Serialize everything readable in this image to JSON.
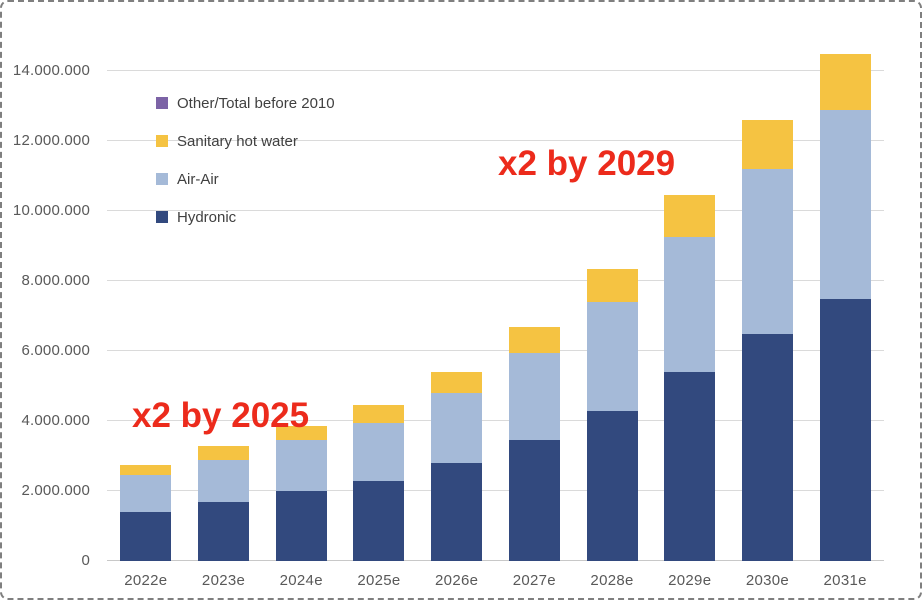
{
  "canvas": {
    "background": "#ffffff",
    "border_color": "#7f7f7f"
  },
  "annotations": [
    {
      "text": "x2 by 2025",
      "color": "#EC2B1C"
    },
    {
      "text": "x2 by 2029",
      "color": "#EC2B1C"
    }
  ],
  "legend": {
    "items": [
      {
        "label": "Other/Total before 2010",
        "color": "#7C63A6"
      },
      {
        "label": "Sanitary hot water",
        "color": "#F5C342"
      },
      {
        "label": "Air-Air",
        "color": "#A5BAD8"
      },
      {
        "label": "Hydronic",
        "color": "#32497E"
      }
    ]
  },
  "chart_data": {
    "type": "bar",
    "stacked": true,
    "title": "",
    "xlabel": "",
    "ylabel": "",
    "categories": [
      "2022e",
      "2023e",
      "2024e",
      "2025e",
      "2026e",
      "2027e",
      "2028e",
      "2029e",
      "2030e",
      "2031e"
    ],
    "series": [
      {
        "name": "Hydronic",
        "color": "#32497E",
        "values": [
          1400000,
          1700000,
          2000000,
          2300000,
          2800000,
          3450000,
          4300000,
          5400000,
          6500000,
          7500000
        ]
      },
      {
        "name": "Air-Air",
        "color": "#A5BAD8",
        "values": [
          1050000,
          1200000,
          1450000,
          1650000,
          2000000,
          2500000,
          3100000,
          3850000,
          4700000,
          5400000
        ]
      },
      {
        "name": "Sanitary hot water",
        "color": "#F5C342",
        "values": [
          300000,
          400000,
          400000,
          500000,
          600000,
          750000,
          950000,
          1200000,
          1400000,
          1600000
        ]
      },
      {
        "name": "Other/Total before 2010",
        "color": "#7C63A6",
        "values": [
          0,
          0,
          0,
          0,
          0,
          0,
          0,
          0,
          0,
          0
        ]
      }
    ],
    "totals": [
      2750000,
      3300000,
      3850000,
      4450000,
      5400000,
      6700000,
      8350000,
      10450000,
      12600000,
      14500000
    ],
    "ylim": [
      0,
      14000000
    ],
    "y_ticks": [
      0,
      2000000,
      4000000,
      6000000,
      8000000,
      10000000,
      12000000,
      14000000
    ],
    "y_tick_labels": [
      "0",
      "2.000.000",
      "4.000.000",
      "6.000.000",
      "8.000.000",
      "10.000.000",
      "12.000.000",
      "14.000.000"
    ],
    "grid": true,
    "legend_position": "upper-left-inside",
    "gridline_color": "#DADADA",
    "axis_line_color": "#C8C8C8",
    "tick_label_color": "#595959",
    "legend_text_color": "#404040"
  }
}
